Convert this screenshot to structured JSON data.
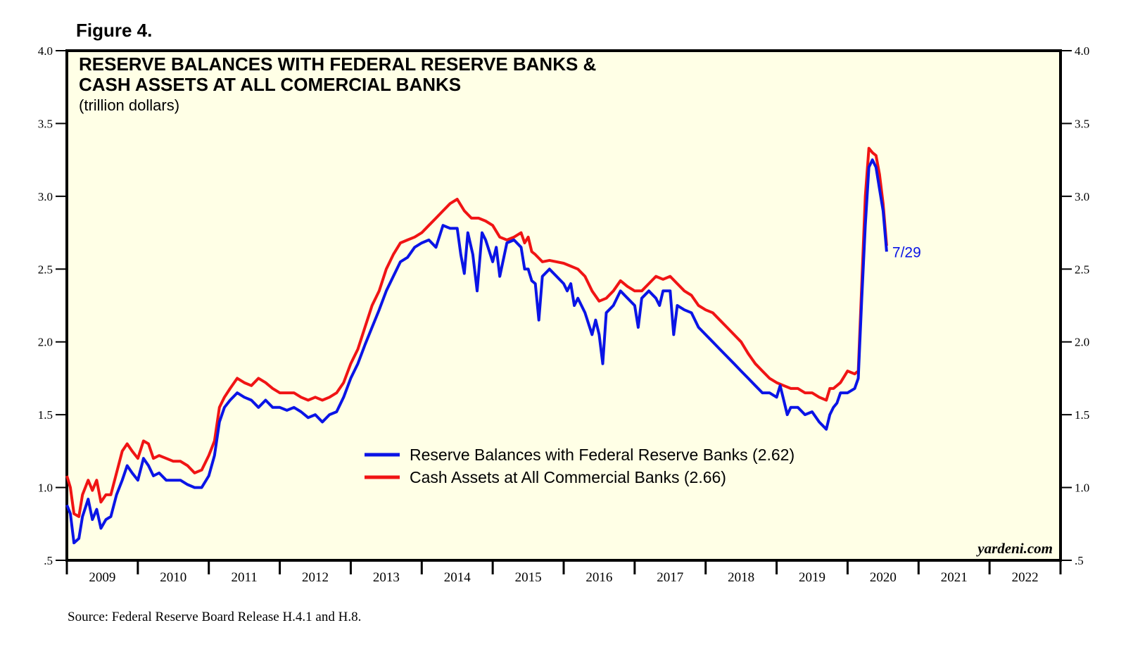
{
  "figure_label": "Figure 4.",
  "source_note": "Source: Federal Reserve Board Release H.4.1 and H.8.",
  "watermark": "yardeni.com",
  "colors": {
    "plot_background": "#ffffe6",
    "reserve": "#0a14e6",
    "cash": "#f01414"
  },
  "chart_data": {
    "type": "line",
    "title": [
      "RESERVE BALANCES WITH FEDERAL RESERVE BANKS &",
      "CASH ASSETS AT ALL COMERCIAL BANKS"
    ],
    "subtitle": "(trillion dollars)",
    "ylim": [
      0.5,
      4.0
    ],
    "yticks": [
      0.5,
      1.0,
      1.5,
      2.0,
      2.5,
      3.0,
      3.5,
      4.0
    ],
    "ytick_labels": [
      ".5",
      "1.0",
      "1.5",
      "2.0",
      "2.5",
      "3.0",
      "3.5",
      "4.0"
    ],
    "xlim": [
      2009.0,
      2023.0
    ],
    "xtick_labels": [
      "2009",
      "2010",
      "2011",
      "2012",
      "2013",
      "2014",
      "2015",
      "2016",
      "2017",
      "2018",
      "2019",
      "2020",
      "2021",
      "2022"
    ],
    "end_label": "7/29",
    "series": [
      {
        "name": "Reserve Balances with Federal Reserve Banks (2.62)",
        "color": "#0a14e6",
        "points": [
          [
            2009.0,
            0.88
          ],
          [
            2009.05,
            0.82
          ],
          [
            2009.1,
            0.62
          ],
          [
            2009.17,
            0.65
          ],
          [
            2009.22,
            0.8
          ],
          [
            2009.3,
            0.92
          ],
          [
            2009.36,
            0.78
          ],
          [
            2009.42,
            0.85
          ],
          [
            2009.48,
            0.72
          ],
          [
            2009.55,
            0.78
          ],
          [
            2009.62,
            0.8
          ],
          [
            2009.7,
            0.95
          ],
          [
            2009.78,
            1.05
          ],
          [
            2009.85,
            1.15
          ],
          [
            2009.92,
            1.1
          ],
          [
            2010.0,
            1.05
          ],
          [
            2010.08,
            1.2
          ],
          [
            2010.15,
            1.15
          ],
          [
            2010.22,
            1.08
          ],
          [
            2010.3,
            1.1
          ],
          [
            2010.4,
            1.05
          ],
          [
            2010.5,
            1.05
          ],
          [
            2010.6,
            1.05
          ],
          [
            2010.7,
            1.02
          ],
          [
            2010.8,
            1.0
          ],
          [
            2010.9,
            1.0
          ],
          [
            2011.0,
            1.08
          ],
          [
            2011.08,
            1.22
          ],
          [
            2011.15,
            1.45
          ],
          [
            2011.22,
            1.55
          ],
          [
            2011.3,
            1.6
          ],
          [
            2011.4,
            1.65
          ],
          [
            2011.5,
            1.62
          ],
          [
            2011.6,
            1.6
          ],
          [
            2011.7,
            1.55
          ],
          [
            2011.8,
            1.6
          ],
          [
            2011.9,
            1.55
          ],
          [
            2012.0,
            1.55
          ],
          [
            2012.1,
            1.53
          ],
          [
            2012.2,
            1.55
          ],
          [
            2012.3,
            1.52
          ],
          [
            2012.4,
            1.48
          ],
          [
            2012.5,
            1.5
          ],
          [
            2012.6,
            1.45
          ],
          [
            2012.7,
            1.5
          ],
          [
            2012.8,
            1.52
          ],
          [
            2012.9,
            1.62
          ],
          [
            2013.0,
            1.75
          ],
          [
            2013.1,
            1.85
          ],
          [
            2013.2,
            1.98
          ],
          [
            2013.3,
            2.1
          ],
          [
            2013.4,
            2.22
          ],
          [
            2013.5,
            2.35
          ],
          [
            2013.6,
            2.45
          ],
          [
            2013.7,
            2.55
          ],
          [
            2013.8,
            2.58
          ],
          [
            2013.9,
            2.65
          ],
          [
            2014.0,
            2.68
          ],
          [
            2014.1,
            2.7
          ],
          [
            2014.2,
            2.65
          ],
          [
            2014.3,
            2.8
          ],
          [
            2014.4,
            2.78
          ],
          [
            2014.5,
            2.78
          ],
          [
            2014.55,
            2.6
          ],
          [
            2014.6,
            2.47
          ],
          [
            2014.65,
            2.75
          ],
          [
            2014.72,
            2.6
          ],
          [
            2014.78,
            2.35
          ],
          [
            2014.85,
            2.75
          ],
          [
            2014.9,
            2.7
          ],
          [
            2015.0,
            2.55
          ],
          [
            2015.05,
            2.65
          ],
          [
            2015.1,
            2.45
          ],
          [
            2015.2,
            2.68
          ],
          [
            2015.3,
            2.7
          ],
          [
            2015.4,
            2.65
          ],
          [
            2015.45,
            2.5
          ],
          [
            2015.5,
            2.5
          ],
          [
            2015.55,
            2.42
          ],
          [
            2015.6,
            2.4
          ],
          [
            2015.65,
            2.15
          ],
          [
            2015.7,
            2.45
          ],
          [
            2015.8,
            2.5
          ],
          [
            2015.9,
            2.45
          ],
          [
            2016.0,
            2.4
          ],
          [
            2016.05,
            2.35
          ],
          [
            2016.1,
            2.4
          ],
          [
            2016.15,
            2.25
          ],
          [
            2016.2,
            2.3
          ],
          [
            2016.3,
            2.2
          ],
          [
            2016.4,
            2.05
          ],
          [
            2016.45,
            2.15
          ],
          [
            2016.5,
            2.05
          ],
          [
            2016.55,
            1.85
          ],
          [
            2016.6,
            2.2
          ],
          [
            2016.7,
            2.25
          ],
          [
            2016.8,
            2.35
          ],
          [
            2016.9,
            2.3
          ],
          [
            2017.0,
            2.25
          ],
          [
            2017.05,
            2.1
          ],
          [
            2017.1,
            2.3
          ],
          [
            2017.2,
            2.35
          ],
          [
            2017.3,
            2.3
          ],
          [
            2017.35,
            2.25
          ],
          [
            2017.4,
            2.35
          ],
          [
            2017.5,
            2.35
          ],
          [
            2017.55,
            2.05
          ],
          [
            2017.6,
            2.25
          ],
          [
            2017.7,
            2.22
          ],
          [
            2017.8,
            2.2
          ],
          [
            2017.9,
            2.1
          ],
          [
            2018.0,
            2.05
          ],
          [
            2018.1,
            2.0
          ],
          [
            2018.2,
            1.95
          ],
          [
            2018.3,
            1.9
          ],
          [
            2018.4,
            1.85
          ],
          [
            2018.5,
            1.8
          ],
          [
            2018.6,
            1.75
          ],
          [
            2018.7,
            1.7
          ],
          [
            2018.8,
            1.65
          ],
          [
            2018.9,
            1.65
          ],
          [
            2019.0,
            1.62
          ],
          [
            2019.05,
            1.7
          ],
          [
            2019.1,
            1.6
          ],
          [
            2019.15,
            1.5
          ],
          [
            2019.2,
            1.55
          ],
          [
            2019.3,
            1.55
          ],
          [
            2019.4,
            1.5
          ],
          [
            2019.5,
            1.52
          ],
          [
            2019.6,
            1.45
          ],
          [
            2019.7,
            1.4
          ],
          [
            2019.75,
            1.5
          ],
          [
            2019.8,
            1.55
          ],
          [
            2019.85,
            1.58
          ],
          [
            2019.9,
            1.65
          ],
          [
            2020.0,
            1.65
          ],
          [
            2020.1,
            1.68
          ],
          [
            2020.15,
            1.75
          ],
          [
            2020.2,
            2.3
          ],
          [
            2020.25,
            2.8
          ],
          [
            2020.3,
            3.2
          ],
          [
            2020.35,
            3.25
          ],
          [
            2020.4,
            3.2
          ],
          [
            2020.45,
            3.05
          ],
          [
            2020.5,
            2.9
          ],
          [
            2020.55,
            2.62
          ]
        ]
      },
      {
        "name": "Cash Assets at All Commercial Banks (2.66)",
        "color": "#f01414",
        "points": [
          [
            2009.0,
            1.08
          ],
          [
            2009.05,
            1.0
          ],
          [
            2009.1,
            0.82
          ],
          [
            2009.17,
            0.8
          ],
          [
            2009.22,
            0.95
          ],
          [
            2009.3,
            1.05
          ],
          [
            2009.36,
            0.98
          ],
          [
            2009.42,
            1.05
          ],
          [
            2009.48,
            0.9
          ],
          [
            2009.55,
            0.95
          ],
          [
            2009.62,
            0.95
          ],
          [
            2009.7,
            1.1
          ],
          [
            2009.78,
            1.25
          ],
          [
            2009.85,
            1.3
          ],
          [
            2009.92,
            1.25
          ],
          [
            2010.0,
            1.2
          ],
          [
            2010.08,
            1.32
          ],
          [
            2010.15,
            1.3
          ],
          [
            2010.22,
            1.2
          ],
          [
            2010.3,
            1.22
          ],
          [
            2010.4,
            1.2
          ],
          [
            2010.5,
            1.18
          ],
          [
            2010.6,
            1.18
          ],
          [
            2010.7,
            1.15
          ],
          [
            2010.8,
            1.1
          ],
          [
            2010.9,
            1.12
          ],
          [
            2011.0,
            1.22
          ],
          [
            2011.08,
            1.32
          ],
          [
            2011.15,
            1.55
          ],
          [
            2011.22,
            1.62
          ],
          [
            2011.3,
            1.68
          ],
          [
            2011.4,
            1.75
          ],
          [
            2011.5,
            1.72
          ],
          [
            2011.6,
            1.7
          ],
          [
            2011.7,
            1.75
          ],
          [
            2011.8,
            1.72
          ],
          [
            2011.9,
            1.68
          ],
          [
            2012.0,
            1.65
          ],
          [
            2012.1,
            1.65
          ],
          [
            2012.2,
            1.65
          ],
          [
            2012.3,
            1.62
          ],
          [
            2012.4,
            1.6
          ],
          [
            2012.5,
            1.62
          ],
          [
            2012.6,
            1.6
          ],
          [
            2012.7,
            1.62
          ],
          [
            2012.8,
            1.65
          ],
          [
            2012.9,
            1.72
          ],
          [
            2013.0,
            1.85
          ],
          [
            2013.1,
            1.95
          ],
          [
            2013.2,
            2.1
          ],
          [
            2013.3,
            2.25
          ],
          [
            2013.4,
            2.35
          ],
          [
            2013.5,
            2.5
          ],
          [
            2013.6,
            2.6
          ],
          [
            2013.7,
            2.68
          ],
          [
            2013.8,
            2.7
          ],
          [
            2013.9,
            2.72
          ],
          [
            2014.0,
            2.75
          ],
          [
            2014.1,
            2.8
          ],
          [
            2014.2,
            2.85
          ],
          [
            2014.3,
            2.9
          ],
          [
            2014.4,
            2.95
          ],
          [
            2014.5,
            2.98
          ],
          [
            2014.6,
            2.9
          ],
          [
            2014.7,
            2.85
          ],
          [
            2014.8,
            2.85
          ],
          [
            2014.9,
            2.83
          ],
          [
            2015.0,
            2.8
          ],
          [
            2015.1,
            2.72
          ],
          [
            2015.2,
            2.7
          ],
          [
            2015.3,
            2.72
          ],
          [
            2015.4,
            2.75
          ],
          [
            2015.45,
            2.68
          ],
          [
            2015.5,
            2.72
          ],
          [
            2015.55,
            2.62
          ],
          [
            2015.6,
            2.6
          ],
          [
            2015.7,
            2.55
          ],
          [
            2015.8,
            2.56
          ],
          [
            2015.9,
            2.55
          ],
          [
            2016.0,
            2.54
          ],
          [
            2016.1,
            2.52
          ],
          [
            2016.2,
            2.5
          ],
          [
            2016.3,
            2.45
          ],
          [
            2016.4,
            2.35
          ],
          [
            2016.5,
            2.28
          ],
          [
            2016.6,
            2.3
          ],
          [
            2016.7,
            2.35
          ],
          [
            2016.8,
            2.42
          ],
          [
            2016.9,
            2.38
          ],
          [
            2017.0,
            2.35
          ],
          [
            2017.1,
            2.35
          ],
          [
            2017.2,
            2.4
          ],
          [
            2017.3,
            2.45
          ],
          [
            2017.4,
            2.43
          ],
          [
            2017.5,
            2.45
          ],
          [
            2017.6,
            2.4
          ],
          [
            2017.7,
            2.35
          ],
          [
            2017.8,
            2.32
          ],
          [
            2017.9,
            2.25
          ],
          [
            2018.0,
            2.22
          ],
          [
            2018.1,
            2.2
          ],
          [
            2018.2,
            2.15
          ],
          [
            2018.3,
            2.1
          ],
          [
            2018.4,
            2.05
          ],
          [
            2018.5,
            2.0
          ],
          [
            2018.6,
            1.92
          ],
          [
            2018.7,
            1.85
          ],
          [
            2018.8,
            1.8
          ],
          [
            2018.9,
            1.75
          ],
          [
            2019.0,
            1.72
          ],
          [
            2019.1,
            1.7
          ],
          [
            2019.2,
            1.68
          ],
          [
            2019.3,
            1.68
          ],
          [
            2019.4,
            1.65
          ],
          [
            2019.5,
            1.65
          ],
          [
            2019.6,
            1.62
          ],
          [
            2019.7,
            1.6
          ],
          [
            2019.75,
            1.68
          ],
          [
            2019.8,
            1.68
          ],
          [
            2019.9,
            1.72
          ],
          [
            2020.0,
            1.8
          ],
          [
            2020.1,
            1.78
          ],
          [
            2020.15,
            1.8
          ],
          [
            2020.2,
            2.4
          ],
          [
            2020.25,
            3.0
          ],
          [
            2020.3,
            3.33
          ],
          [
            2020.35,
            3.3
          ],
          [
            2020.4,
            3.28
          ],
          [
            2020.45,
            3.15
          ],
          [
            2020.5,
            2.95
          ],
          [
            2020.55,
            2.66
          ]
        ]
      }
    ]
  }
}
